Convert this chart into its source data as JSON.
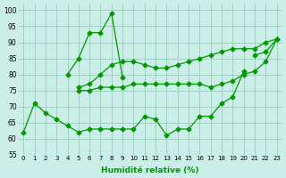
{
  "x": [
    0,
    1,
    2,
    3,
    4,
    5,
    6,
    7,
    8,
    9,
    10,
    11,
    12,
    13,
    14,
    15,
    16,
    17,
    18,
    19,
    20,
    21,
    22,
    23
  ],
  "line_zigzag": [
    62,
    71,
    68,
    66,
    64,
    62,
    63,
    63,
    63,
    63,
    63,
    67,
    66,
    61,
    63,
    63,
    67,
    67,
    71,
    73,
    81,
    null,
    null,
    null
  ],
  "line_peak": [
    null,
    null,
    null,
    null,
    80,
    85,
    93,
    93,
    99,
    79,
    null,
    null,
    null,
    null,
    null,
    null,
    null,
    null,
    null,
    null,
    null,
    86,
    87,
    91
  ],
  "line_upper": [
    null,
    null,
    null,
    null,
    null,
    76,
    77,
    80,
    83,
    84,
    84,
    83,
    82,
    82,
    83,
    84,
    85,
    86,
    87,
    88,
    88,
    88,
    90,
    91
  ],
  "line_flat": [
    null,
    null,
    null,
    null,
    null,
    75,
    75,
    76,
    76,
    76,
    77,
    77,
    77,
    77,
    77,
    77,
    77,
    76,
    77,
    78,
    80,
    81,
    84,
    91
  ],
  "bgcolor": "#cceee8",
  "grid_color": "#99ccbb",
  "line_color": "#009900",
  "xlabel": "Humidité relative (%)",
  "ylim": [
    55,
    102
  ],
  "yticks": [
    55,
    60,
    65,
    70,
    75,
    80,
    85,
    90,
    95,
    100
  ],
  "xticks": [
    0,
    1,
    2,
    3,
    4,
    5,
    6,
    7,
    8,
    9,
    10,
    11,
    12,
    13,
    14,
    15,
    16,
    17,
    18,
    19,
    20,
    21,
    22,
    23
  ]
}
